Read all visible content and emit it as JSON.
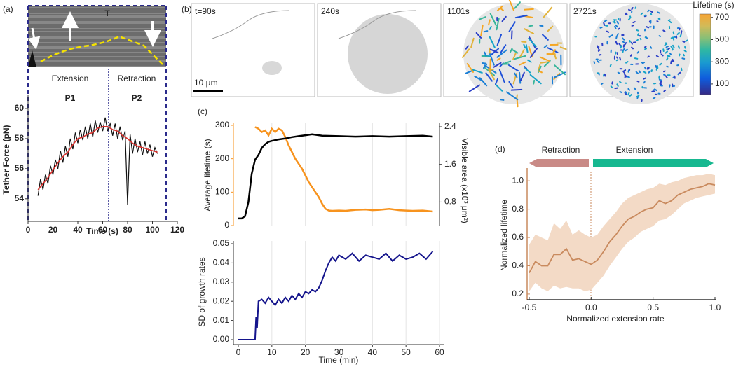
{
  "chart_data": [
    {
      "type": "line",
      "panel_label": "(a)",
      "image_annotation": "T",
      "annotations": [
        "Extension",
        "Retraction",
        "P1",
        "P2"
      ],
      "xlabel": "Time (s)",
      "ylabel": "Tether Force (pN)",
      "xlim": [
        0,
        120
      ],
      "xticks": [
        0,
        20,
        40,
        60,
        80,
        100,
        120
      ],
      "ylim": [
        52.5,
        60.7
      ],
      "yticks": [
        54,
        56,
        58,
        60
      ],
      "series": [
        {
          "color": "#111111",
          "x": [
            8,
            10,
            12,
            14,
            16,
            18,
            20,
            22,
            24,
            26,
            28,
            30,
            32,
            34,
            36,
            38,
            40,
            42,
            44,
            46,
            48,
            50,
            52,
            54,
            56,
            58,
            60,
            62,
            64,
            66,
            68,
            70,
            72,
            74,
            76,
            78,
            80,
            82,
            84,
            86,
            88,
            90,
            92,
            94,
            96,
            98,
            100,
            102,
            104
          ],
          "values": [
            54.2,
            55.3,
            54.6,
            55.6,
            55.0,
            56.2,
            55.6,
            56.6,
            56.0,
            57.2,
            56.4,
            57.5,
            56.8,
            58.0,
            57.3,
            58.4,
            57.7,
            58.6,
            57.9,
            58.8,
            58.0,
            59.0,
            58.1,
            59.2,
            58.4,
            59.1,
            58.5,
            59.4,
            58.5,
            59.0,
            58.2,
            59.0,
            58.0,
            58.8,
            57.9,
            58.5,
            53.6,
            58.3,
            57.0,
            58.0,
            57.1,
            57.8,
            56.9,
            57.8,
            57.0,
            57.6,
            56.8,
            57.4,
            57.0
          ]
        },
        {
          "color": "#d9302c",
          "x": [
            8,
            12,
            16,
            20,
            24,
            28,
            32,
            36,
            40,
            44,
            48,
            52,
            56,
            60,
            64,
            68,
            72,
            76,
            80,
            84,
            88,
            92,
            96,
            100,
            104
          ],
          "values": [
            54.6,
            55.0,
            55.4,
            55.9,
            56.4,
            56.8,
            57.1,
            57.6,
            58.0,
            58.1,
            58.3,
            58.4,
            58.7,
            58.8,
            58.8,
            58.6,
            58.5,
            58.2,
            58.0,
            57.7,
            57.5,
            57.4,
            57.3,
            57.2,
            57.1
          ]
        }
      ]
    },
    {
      "type": "images",
      "panel_label": "(b)",
      "frames": [
        "t=90s",
        "240s",
        "1101s",
        "2721s"
      ],
      "scale_bar": "10 μm",
      "colorbar": {
        "title": "Lifetime (s)",
        "lim": [
          5,
          730
        ],
        "ticks": [
          100,
          300,
          500,
          700
        ]
      }
    },
    {
      "type": "dual-line",
      "panel_label": "(c)",
      "ylabel": "Average lifetime (s)",
      "y2label": "Visible area (x10³ μm²)",
      "xlim": [
        0,
        60
      ],
      "xgrid": [
        10,
        20,
        30,
        40,
        50,
        60
      ],
      "ylim": [
        0,
        300
      ],
      "yticks": [
        0,
        100,
        200,
        300
      ],
      "y2lim": [
        0.3,
        2.43
      ],
      "y2ticks": [
        0.8,
        1.6,
        2.4
      ],
      "series": [
        {
          "color": "#f7931e",
          "x": [
            5,
            6,
            7,
            8,
            9,
            10,
            11,
            12,
            13,
            14,
            15,
            16,
            17,
            18,
            19,
            20,
            21,
            22,
            23,
            24,
            25,
            26,
            27,
            28,
            30,
            32,
            35,
            38,
            40,
            42,
            45,
            48,
            50,
            52,
            55,
            58
          ],
          "values": [
            295,
            290,
            280,
            285,
            270,
            290,
            280,
            290,
            285,
            265,
            240,
            220,
            200,
            185,
            170,
            150,
            130,
            115,
            100,
            85,
            65,
            50,
            45,
            44,
            45,
            44,
            47,
            48,
            46,
            47,
            50,
            46,
            45,
            44,
            45,
            42
          ]
        },
        {
          "color": "#000000",
          "axis": "y2",
          "x": [
            0,
            1,
            2,
            3,
            4,
            5,
            6,
            7,
            8,
            9,
            10,
            12,
            14,
            16,
            18,
            20,
            22,
            25,
            30,
            35,
            40,
            45,
            50,
            55,
            58
          ],
          "values": [
            0.45,
            0.45,
            0.5,
            0.8,
            1.4,
            1.7,
            1.8,
            1.95,
            2.03,
            2.08,
            2.1,
            2.13,
            2.15,
            2.18,
            2.2,
            2.22,
            2.24,
            2.21,
            2.2,
            2.19,
            2.2,
            2.19,
            2.2,
            2.21,
            2.19
          ]
        }
      ]
    },
    {
      "type": "line",
      "ylabel": "SD of growth rates",
      "xlabel": "Time (min)",
      "xlim": [
        0,
        60
      ],
      "xticks": [
        0,
        10,
        20,
        30,
        40,
        50,
        60
      ],
      "xgrid": true,
      "ylim": [
        0,
        0.05
      ],
      "yticks": [
        {
          "value": 0,
          "label": "0.00"
        },
        0.01,
        0.02,
        0.03,
        0.04,
        0.05
      ],
      "series": [
        {
          "color": "#14148c",
          "x": [
            0,
            5,
            5.3,
            5.6,
            6,
            7,
            8,
            9,
            10,
            11,
            12,
            13,
            14,
            15,
            16,
            17,
            18,
            19,
            20,
            21,
            22,
            23,
            24,
            25,
            26,
            27,
            28,
            29,
            30,
            32,
            34,
            36,
            38,
            40,
            42,
            44,
            46,
            48,
            50,
            52,
            54,
            56,
            58
          ],
          "values": [
            0,
            0,
            0.012,
            0.006,
            0.02,
            0.021,
            0.019,
            0.022,
            0.02,
            0.018,
            0.021,
            0.019,
            0.022,
            0.02,
            0.023,
            0.021,
            0.024,
            0.022,
            0.025,
            0.024,
            0.026,
            0.025,
            0.027,
            0.031,
            0.036,
            0.04,
            0.043,
            0.041,
            0.044,
            0.042,
            0.045,
            0.041,
            0.044,
            0.043,
            0.042,
            0.045,
            0.041,
            0.044,
            0.042,
            0.043,
            0.045,
            0.042,
            0.046
          ]
        }
      ]
    },
    {
      "type": "line-band",
      "panel_label": "(d)",
      "annotations": [
        "Retraction",
        "Extension"
      ],
      "xlabel": "Normalized extension rate",
      "ylabel": "Normalized lifetime",
      "xlim": [
        -0.5,
        1.0
      ],
      "xticks": [
        -0.5,
        {
          "value": 0,
          "label": "0.0"
        },
        0.5,
        {
          "value": 1,
          "label": "1.0"
        }
      ],
      "ylim": [
        0.16,
        1.09
      ],
      "yticks": [
        0.2,
        0.4,
        0.6,
        0.8,
        {
          "value": 1,
          "label": "1.0"
        }
      ],
      "x": [
        -0.5,
        -0.45,
        -0.4,
        -0.35,
        -0.3,
        -0.25,
        -0.2,
        -0.15,
        -0.1,
        -0.05,
        0,
        0.05,
        0.1,
        0.15,
        0.2,
        0.25,
        0.3,
        0.35,
        0.4,
        0.45,
        0.5,
        0.55,
        0.6,
        0.65,
        0.7,
        0.75,
        0.8,
        0.85,
        0.9,
        0.95,
        1.0
      ],
      "series": [
        {
          "color": "#c98a5e",
          "band_color": "#f3dac6",
          "values": [
            0.35,
            0.43,
            0.4,
            0.4,
            0.48,
            0.48,
            0.52,
            0.44,
            0.45,
            0.43,
            0.41,
            0.44,
            0.5,
            0.57,
            0.62,
            0.68,
            0.73,
            0.75,
            0.78,
            0.8,
            0.81,
            0.86,
            0.84,
            0.86,
            0.9,
            0.92,
            0.94,
            0.95,
            0.96,
            0.98,
            0.97
          ],
          "lower": [
            0.22,
            0.28,
            0.24,
            0.22,
            0.26,
            0.24,
            0.25,
            0.24,
            0.24,
            0.22,
            0.23,
            0.28,
            0.33,
            0.4,
            0.46,
            0.52,
            0.57,
            0.6,
            0.64,
            0.66,
            0.68,
            0.72,
            0.73,
            0.76,
            0.8,
            0.84,
            0.86,
            0.88,
            0.89,
            0.9,
            0.91
          ],
          "upper": [
            0.55,
            0.62,
            0.6,
            0.58,
            0.7,
            0.66,
            0.72,
            0.62,
            0.65,
            0.62,
            0.6,
            0.62,
            0.68,
            0.73,
            0.78,
            0.84,
            0.88,
            0.9,
            0.92,
            0.94,
            0.95,
            0.98,
            0.97,
            0.99,
            1.0,
            1.02,
            1.03,
            1.04,
            1.04,
            1.05,
            1.04
          ]
        }
      ]
    }
  ]
}
